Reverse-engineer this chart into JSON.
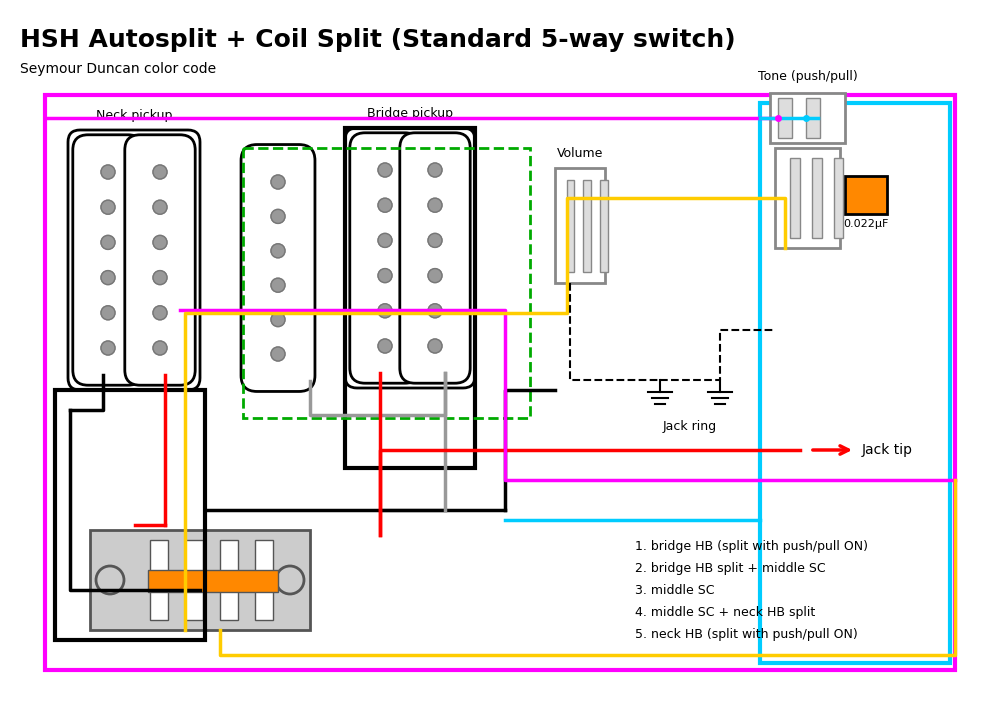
{
  "title": "HSH Autosplit + Coil Split (Standard 5-way switch)",
  "subtitle": "Seymour Duncan color code",
  "background_color": "#ffffff",
  "text_color": "#000000",
  "colors": {
    "black": "#000000",
    "red": "#ff0000",
    "yellow": "#ffcc00",
    "magenta": "#ff00ff",
    "cyan": "#00ccff",
    "green": "#00aa00",
    "gray": "#aaaaaa",
    "white": "#ffffff",
    "orange": "#ff8800",
    "light_gray": "#cccccc",
    "mid_gray": "#999999",
    "dark_gray": "#555555",
    "pot_gray": "#dddddd",
    "pot_edge": "#888888"
  },
  "legend": [
    "1. bridge HB (split with push/pull ON)",
    "2. bridge HB split + middle SC",
    "3. middle SC",
    "4. middle SC + neck HB split",
    "5. neck HB (split with push/pull ON)"
  ]
}
